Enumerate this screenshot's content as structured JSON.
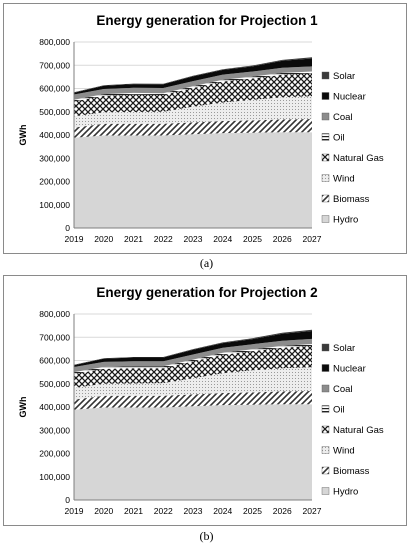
{
  "chart_data": [
    {
      "type": "area",
      "stacked": true,
      "title": "Energy generation for Projection 1",
      "ylabel": "GWh",
      "xlabel": "",
      "caption": "(a)",
      "ylim": [
        0,
        800000
      ],
      "yticks": [
        "0",
        "100,000",
        "200,000",
        "300,000",
        "400,000",
        "500,000",
        "600,000",
        "700,000",
        "800,000"
      ],
      "x": [
        "2019",
        "2020",
        "2021",
        "2022",
        "2023",
        "2024",
        "2025",
        "2026",
        "2027"
      ],
      "legend": "right",
      "series": [
        {
          "name": "Hydro",
          "pattern": "light",
          "values": [
            388000,
            398000,
            398000,
            398000,
            403000,
            408000,
            410000,
            412000,
            412000
          ]
        },
        {
          "name": "Biomass",
          "pattern": "diag",
          "values": [
            44000,
            50000,
            50000,
            50000,
            51000,
            52000,
            53000,
            55000,
            57000
          ]
        },
        {
          "name": "Wind",
          "pattern": "dots",
          "values": [
            48000,
            50000,
            51000,
            52000,
            68000,
            80000,
            88000,
            95000,
            98000
          ]
        },
        {
          "name": "Natural Gas",
          "pattern": "cross",
          "values": [
            64000,
            70000,
            74000,
            72000,
            80000,
            90000,
            92000,
            97000,
            98000
          ]
        },
        {
          "name": "Oil",
          "pattern": "hlines",
          "values": [
            8000,
            8000,
            8000,
            8000,
            8000,
            8000,
            8000,
            8000,
            8000
          ]
        },
        {
          "name": "Coal",
          "pattern": "gray",
          "values": [
            22000,
            22000,
            22000,
            22000,
            22000,
            22000,
            22000,
            22000,
            22000
          ]
        },
        {
          "name": "Nuclear",
          "pattern": "black",
          "values": [
            8000,
            14000,
            16000,
            16000,
            20000,
            20000,
            22000,
            30000,
            34000
          ]
        },
        {
          "name": "Solar",
          "pattern": "dark",
          "values": [
            2000,
            2000,
            2000,
            2000,
            3000,
            3000,
            4000,
            4000,
            5000
          ]
        }
      ]
    },
    {
      "type": "area",
      "stacked": true,
      "title": "Energy generation for Projection 2",
      "ylabel": "GWh",
      "xlabel": "",
      "caption": "(b)",
      "ylim": [
        0,
        800000
      ],
      "yticks": [
        "0",
        "100,000",
        "200,000",
        "300,000",
        "400,000",
        "500,000",
        "600,000",
        "700,000",
        "800,000"
      ],
      "x": [
        "2019",
        "2020",
        "2021",
        "2022",
        "2023",
        "2024",
        "2025",
        "2026",
        "2027"
      ],
      "legend": "right",
      "series": [
        {
          "name": "Hydro",
          "pattern": "light",
          "values": [
            388000,
            398000,
            398000,
            398000,
            403000,
            408000,
            410000,
            412000,
            412000
          ]
        },
        {
          "name": "Biomass",
          "pattern": "diag",
          "values": [
            44000,
            50000,
            50000,
            50000,
            51000,
            52000,
            53000,
            55000,
            57000
          ]
        },
        {
          "name": "Wind",
          "pattern": "dots",
          "values": [
            50000,
            52000,
            53000,
            55000,
            70000,
            85000,
            95000,
            100000,
            102000
          ]
        },
        {
          "name": "Natural Gas",
          "pattern": "cross",
          "values": [
            60000,
            64000,
            66000,
            64000,
            72000,
            80000,
            82000,
            88000,
            92000
          ]
        },
        {
          "name": "Oil",
          "pattern": "hlines",
          "values": [
            8000,
            8000,
            8000,
            8000,
            8000,
            8000,
            8000,
            8000,
            8000
          ]
        },
        {
          "name": "Coal",
          "pattern": "gray",
          "values": [
            22000,
            22000,
            22000,
            22000,
            22000,
            22000,
            22000,
            22000,
            22000
          ]
        },
        {
          "name": "Nuclear",
          "pattern": "black",
          "values": [
            8000,
            14000,
            16000,
            16000,
            20000,
            20000,
            22000,
            30000,
            34000
          ]
        },
        {
          "name": "Solar",
          "pattern": "dark",
          "values": [
            2000,
            2000,
            2000,
            2000,
            3000,
            3000,
            4000,
            4000,
            5000
          ]
        }
      ]
    }
  ]
}
